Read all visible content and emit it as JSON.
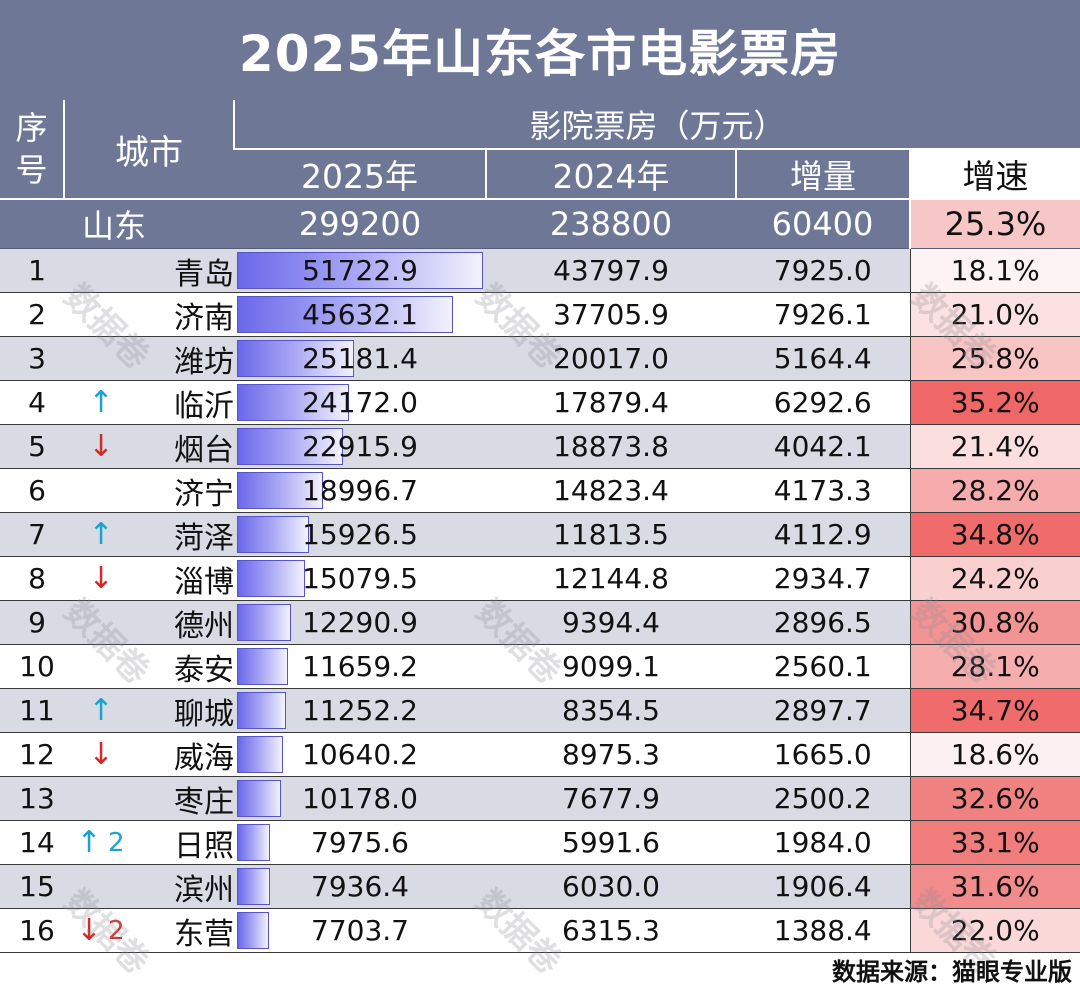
{
  "title": "2025年山东各市电影票房",
  "header": {
    "rank": "序号",
    "city": "城市",
    "group": "影院票房（万元）",
    "y2025": "2025年",
    "y2024": "2024年",
    "increase": "增量",
    "rate": "增速"
  },
  "total": {
    "name": "山东",
    "y2025": "299200",
    "y2024": "238800",
    "increase": "60400",
    "rate": "25.3%",
    "rate_color": "#f7c7c7"
  },
  "rows": [
    {
      "rank": "1",
      "change": "",
      "change_n": "",
      "city": "青岛",
      "y2025": "51722.9",
      "y2024": "43797.9",
      "increase": "7925.0",
      "rate": "18.1%",
      "rate_color": "#fdf3f3",
      "share": 1.0
    },
    {
      "rank": "2",
      "change": "",
      "change_n": "",
      "city": "济南",
      "y2025": "45632.1",
      "y2024": "37705.9",
      "increase": "7926.1",
      "rate": "21.0%",
      "rate_color": "#fbe1e1",
      "share": 0.882
    },
    {
      "rank": "3",
      "change": "",
      "change_n": "",
      "city": "潍坊",
      "y2025": "25181.4",
      "y2024": "20017.0",
      "increase": "5164.4",
      "rate": "25.8%",
      "rate_color": "#f8c4c4",
      "share": 0.487
    },
    {
      "rank": "4",
      "change": "↑",
      "change_n": "",
      "city": "临沂",
      "y2025": "24172.0",
      "y2024": "17879.4",
      "increase": "6292.6",
      "rate": "35.2%",
      "rate_color": "#f06767",
      "share": 0.467
    },
    {
      "rank": "5",
      "change": "↓",
      "change_n": "",
      "city": "烟台",
      "y2025": "22915.9",
      "y2024": "18873.8",
      "increase": "4042.1",
      "rate": "21.4%",
      "rate_color": "#fbdfdf",
      "share": 0.443
    },
    {
      "rank": "6",
      "change": "",
      "change_n": "",
      "city": "济宁",
      "y2025": "18996.7",
      "y2024": "14823.4",
      "increase": "4173.3",
      "rate": "28.2%",
      "rate_color": "#f6acac",
      "share": 0.367
    },
    {
      "rank": "7",
      "change": "↑",
      "change_n": "",
      "city": "菏泽",
      "y2025": "15926.5",
      "y2024": "11813.5",
      "increase": "4112.9",
      "rate": "34.8%",
      "rate_color": "#f06b6b",
      "share": 0.308
    },
    {
      "rank": "8",
      "change": "↓",
      "change_n": "",
      "city": "淄博",
      "y2025": "15079.5",
      "y2024": "12144.8",
      "increase": "2934.7",
      "rate": "24.2%",
      "rate_color": "#f9cfcf",
      "share": 0.292
    },
    {
      "rank": "9",
      "change": "",
      "change_n": "",
      "city": "德州",
      "y2025": "12290.9",
      "y2024": "9394.4",
      "increase": "2896.5",
      "rate": "30.8%",
      "rate_color": "#f39494",
      "share": 0.238
    },
    {
      "rank": "10",
      "change": "",
      "change_n": "",
      "city": "泰安",
      "y2025": "11659.2",
      "y2024": "9099.1",
      "increase": "2560.1",
      "rate": "28.1%",
      "rate_color": "#f6adad",
      "share": 0.225
    },
    {
      "rank": "11",
      "change": "↑",
      "change_n": "",
      "city": "聊城",
      "y2025": "11252.2",
      "y2024": "8354.5",
      "increase": "2897.7",
      "rate": "34.7%",
      "rate_color": "#f06c6c",
      "share": 0.218
    },
    {
      "rank": "12",
      "change": "↓",
      "change_n": "",
      "city": "威海",
      "y2025": "10640.2",
      "y2024": "8975.3",
      "increase": "1665.0",
      "rate": "18.6%",
      "rate_color": "#fdf0f0",
      "share": 0.206
    },
    {
      "rank": "13",
      "change": "",
      "change_n": "",
      "city": "枣庄",
      "y2025": "10178.0",
      "y2024": "7677.9",
      "increase": "2500.2",
      "rate": "32.6%",
      "rate_color": "#f18282",
      "share": 0.197
    },
    {
      "rank": "14",
      "change": "↑",
      "change_n": "2",
      "city": "日照",
      "y2025": "7975.6",
      "y2024": "5991.6",
      "increase": "1984.0",
      "rate": "33.1%",
      "rate_color": "#f17c7c",
      "share": 0.154
    },
    {
      "rank": "15",
      "change": "",
      "change_n": "",
      "city": "滨州",
      "y2025": "7936.4",
      "y2024": "6030.0",
      "increase": "1906.4",
      "rate": "31.6%",
      "rate_color": "#f28b8b",
      "share": 0.153
    },
    {
      "rank": "16",
      "change": "↓",
      "change_n": "2",
      "city": "东营",
      "y2025": "7703.7",
      "y2024": "6315.3",
      "increase": "1388.4",
      "rate": "22.0%",
      "rate_color": "#fad8d8",
      "share": 0.149
    }
  ],
  "watermark": "数据卷",
  "source": "数据来源：猫眼专业版"
}
